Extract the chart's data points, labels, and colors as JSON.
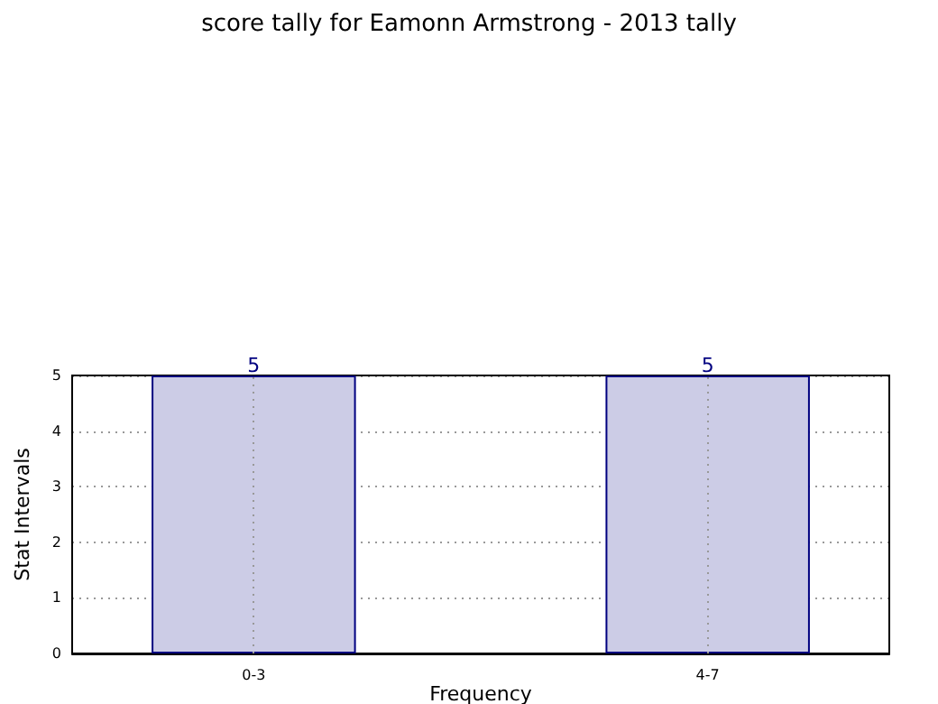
{
  "chart_data": {
    "type": "bar",
    "title": "score tally for Eamonn Armstrong - 2013 tally",
    "xlabel": "Frequency",
    "ylabel": "Stat Intervals",
    "categories": [
      "0-3",
      "4-7"
    ],
    "values": [
      5,
      5
    ],
    "color": "#ccccE6",
    "ylim": [
      0,
      5
    ],
    "yticks": [
      0,
      1,
      2,
      3,
      4,
      5
    ],
    "grid": true,
    "data_labels": true
  }
}
